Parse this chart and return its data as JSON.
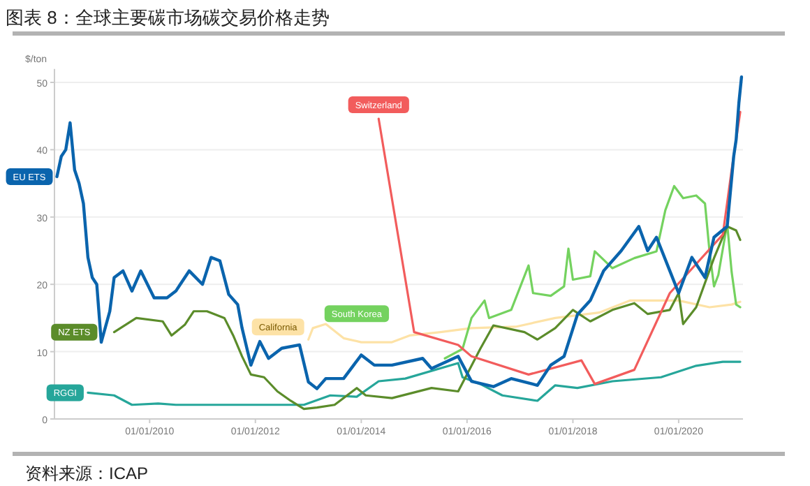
{
  "chart_data": {
    "type": "line",
    "title": "图表 8：全球主要碳市场碳交易价格走势",
    "ylabel": "$/ton",
    "annotations": [
      "资料来源：ICAP"
    ],
    "grid": "y",
    "xlim": [
      "2008-03-15",
      "2021-03-20"
    ],
    "ylim": [
      0,
      52
    ],
    "yticks": [
      0,
      10,
      20,
      30,
      40,
      50
    ],
    "xticks": [
      {
        "value": "2010-01-01",
        "label": "01/01/2010"
      },
      {
        "value": "2012-01-01",
        "label": "01/01/2012"
      },
      {
        "value": "2014-01-01",
        "label": "01/01/2014"
      },
      {
        "value": "2016-01-01",
        "label": "01/01/2016"
      },
      {
        "value": "2018-01-01",
        "label": "01/01/2018"
      },
      {
        "value": "2020-01-01",
        "label": "01/01/2020"
      }
    ],
    "series": [
      {
        "name": "California",
        "color": "#fde2a6",
        "x": [
          "2013-01",
          "2013-02",
          "2013-05",
          "2013-09",
          "2014-01",
          "2014-08",
          "2014-12",
          "2015-07",
          "2016-02",
          "2016-12",
          "2017-09",
          "2018-07",
          "2019-02",
          "2020-01",
          "2020-08",
          "2021-01",
          "2021-03"
        ],
        "values": [
          11.8,
          13.5,
          14.1,
          12,
          11.4,
          11.4,
          12.4,
          12.9,
          13.5,
          13.7,
          15,
          15.8,
          17.6,
          17.6,
          16.6,
          17,
          17.4
        ]
      },
      {
        "name": "RGGI",
        "color": "#26a69a",
        "x": [
          "2008-11",
          "2009-05",
          "2009-09",
          "2010-03",
          "2010-07",
          "2012-12",
          "2013-06",
          "2013-12",
          "2014-05",
          "2014-11",
          "2015-11",
          "2015-12",
          "2016-04",
          "2016-09",
          "2017-05",
          "2017-09",
          "2018-02",
          "2018-10",
          "2019-09",
          "2020-05",
          "2020-11",
          "2021-03"
        ],
        "values": [
          3.9,
          3.5,
          2.1,
          2.3,
          2.1,
          2.1,
          3.5,
          3.3,
          5.6,
          6,
          8.3,
          6.2,
          5.2,
          3.5,
          2.7,
          5,
          4.6,
          5.6,
          6.2,
          7.9,
          8.5,
          8.5
        ]
      },
      {
        "name": "South Korea",
        "color": "#74d25f",
        "x": [
          "2015-08",
          "2015-12",
          "2016-02",
          "2016-05",
          "2016-06",
          "2016-11",
          "2017-03",
          "2017-04",
          "2017-08",
          "2017-11",
          "2017-12",
          "2018-01",
          "2018-05",
          "2018-06",
          "2018-10",
          "2019-03",
          "2019-08",
          "2019-10",
          "2019-12",
          "2020-02",
          "2020-05",
          "2020-07",
          "2020-08",
          "2020-09",
          "2020-10",
          "2020-12",
          "2021-01",
          "2021-02",
          "2021-03"
        ],
        "values": [
          9,
          10.4,
          15,
          17.6,
          15,
          16.2,
          22.8,
          18.7,
          18.3,
          19.7,
          25.3,
          20.7,
          21.2,
          24.9,
          22.4,
          23.9,
          24.9,
          31,
          34.6,
          32.8,
          33.2,
          32,
          24.9,
          19.7,
          21.4,
          29,
          21.8,
          17,
          16.6
        ]
      },
      {
        "name": "NZ ETS",
        "color": "#5b8c2a",
        "x": [
          "2009-05",
          "2009-10",
          "2010-04",
          "2010-06",
          "2010-09",
          "2010-11",
          "2011-02",
          "2011-06",
          "2011-08",
          "2011-10",
          "2011-12",
          "2012-03",
          "2012-06",
          "2012-09",
          "2012-12",
          "2013-03",
          "2013-07",
          "2013-12",
          "2014-02",
          "2014-08",
          "2015-05",
          "2015-11",
          "2016-04",
          "2016-07",
          "2017-02",
          "2017-05",
          "2017-09",
          "2018-01",
          "2018-05",
          "2018-10",
          "2019-03",
          "2019-06",
          "2019-11",
          "2020-01",
          "2020-02",
          "2020-05",
          "2020-09",
          "2020-12",
          "2021-02",
          "2021-03"
        ],
        "values": [
          12.9,
          15,
          14.5,
          12.4,
          14,
          16,
          16,
          15,
          12.4,
          9.3,
          6.6,
          6.2,
          4.1,
          2.7,
          1.5,
          1.7,
          2.1,
          4.6,
          3.5,
          3.1,
          4.6,
          4.1,
          10.4,
          13.9,
          12.9,
          11.8,
          13.5,
          16.2,
          14.5,
          16.2,
          17.2,
          15.6,
          16.2,
          18.7,
          14.1,
          16.6,
          23.9,
          28.6,
          28,
          26.6
        ]
      },
      {
        "name": "Switzerland",
        "color": "#f25c5c",
        "x": [
          "2014-05",
          "2015-01",
          "2015-11",
          "2016-02",
          "2017-03",
          "2018-03",
          "2018-06",
          "2019-03",
          "2019-11",
          "2020-11",
          "2021-01",
          "2021-03"
        ],
        "values": [
          44.6,
          12.9,
          11,
          9.3,
          6.6,
          8.7,
          5.2,
          7.3,
          18.7,
          27.4,
          37,
          45.6
        ]
      },
      {
        "name": "EU ETS",
        "color": "#0a64ad",
        "x": [
          "2008-04",
          "2008-05",
          "2008-06",
          "2008-07",
          "2008-08",
          "2008-09",
          "2008-10",
          "2008-11",
          "2008-12",
          "2009-01",
          "2009-02",
          "2009-04",
          "2009-05",
          "2009-07",
          "2009-09",
          "2009-11",
          "2010-02",
          "2010-05",
          "2010-07",
          "2010-10",
          "2011-01",
          "2011-03",
          "2011-05",
          "2011-07",
          "2011-09",
          "2011-10",
          "2011-12",
          "2012-02",
          "2012-04",
          "2012-07",
          "2012-11",
          "2013-01",
          "2013-03",
          "2013-05",
          "2013-09",
          "2014-01",
          "2014-04",
          "2014-08",
          "2015-03",
          "2015-05",
          "2015-11",
          "2016-02",
          "2016-07",
          "2016-11",
          "2017-05",
          "2017-08",
          "2017-11",
          "2018-02",
          "2018-05",
          "2018-08",
          "2018-12",
          "2019-04",
          "2019-06",
          "2019-08",
          "2019-11",
          "2020-01",
          "2020-04",
          "2020-07",
          "2020-09",
          "2020-12",
          "2021-01-15",
          "2021-02-01",
          "2021-02-20",
          "2021-03-10"
        ],
        "values": [
          36,
          39,
          40,
          44,
          37,
          35,
          32,
          24,
          21,
          20,
          11.4,
          16,
          21,
          22,
          19,
          22,
          18,
          18,
          19,
          22,
          20,
          24,
          23.5,
          18.5,
          17,
          13.5,
          8,
          11.5,
          9,
          10.5,
          11,
          5.5,
          4.5,
          6,
          6,
          9.5,
          8,
          8,
          9,
          7.5,
          9.3,
          5.6,
          4.8,
          6,
          5,
          8,
          9.3,
          15.5,
          17.6,
          22,
          25,
          28.6,
          25,
          27,
          22,
          18.7,
          24,
          21,
          27,
          28.6,
          39,
          41.5,
          47,
          50.8
        ]
      }
    ]
  }
}
